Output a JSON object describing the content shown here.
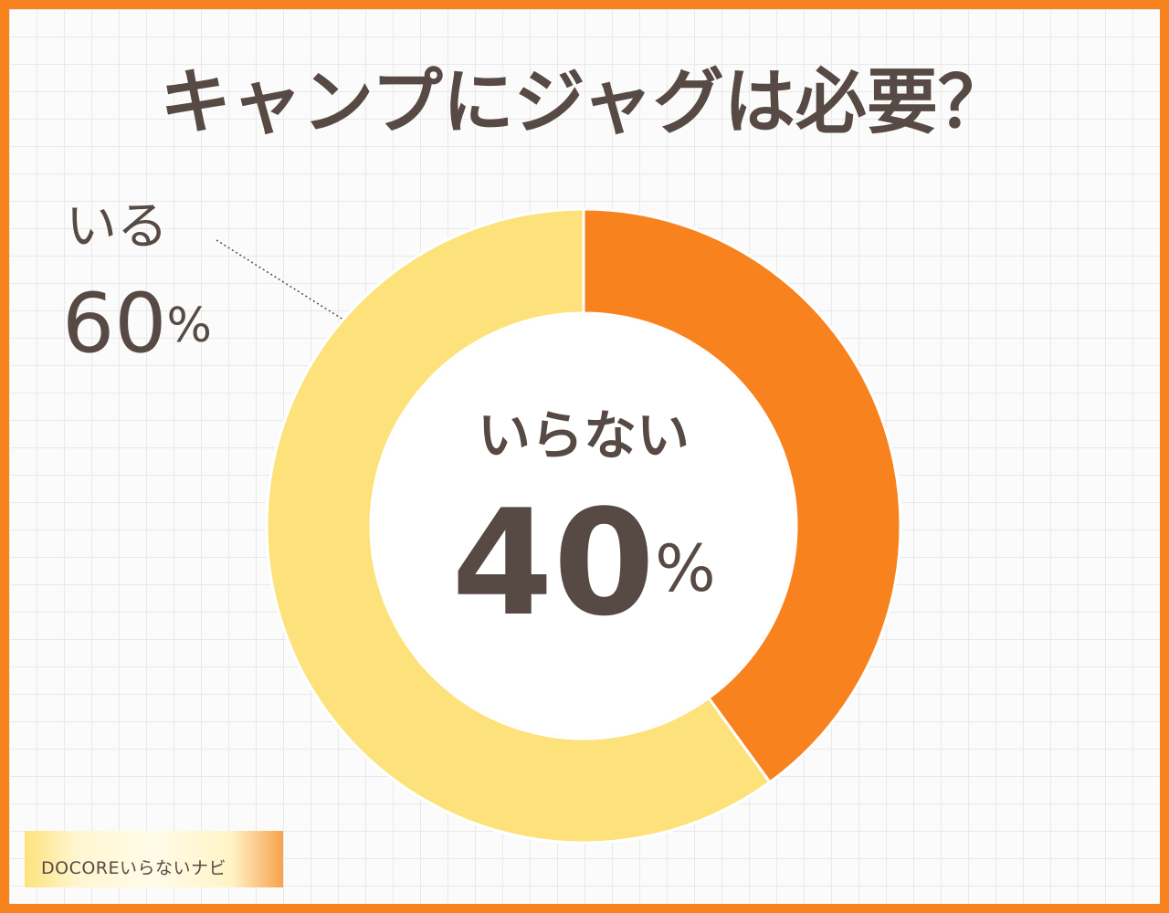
{
  "chart_data": {
    "type": "donut",
    "title": "キャンプにジャグは必要？",
    "categories": [
      "いらない",
      "いる"
    ],
    "values": [
      40,
      60
    ],
    "value_labels": [
      "40%",
      "60%"
    ],
    "colors": [
      "#f8821e",
      "#fde27c"
    ]
  },
  "credit": "DOCOREいらないナビ"
}
